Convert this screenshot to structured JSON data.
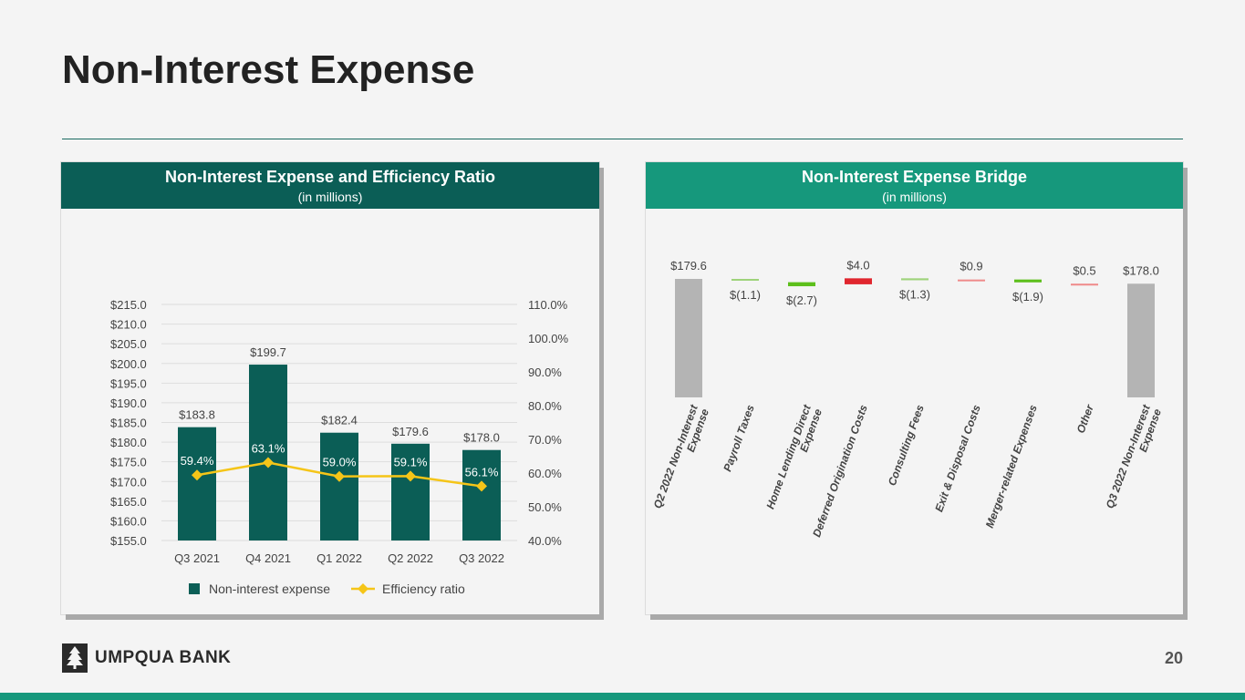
{
  "page": {
    "title": "Non-Interest Expense",
    "page_number": "20",
    "logo_text": "UMPQUA BANK"
  },
  "colors": {
    "dark_teal": "#0b5e56",
    "bright_teal": "#16987c",
    "gold": "#f5c518",
    "green": "#5cbf1b",
    "light_green": "#9ed37a",
    "red": "#e0262e",
    "light_red": "#ef8a8a",
    "gray": "#b4b4b4"
  },
  "left_panel": {
    "title": "Non-Interest Expense and Efficiency Ratio",
    "subtitle": "(in millions)"
  },
  "right_panel": {
    "title": "Non-Interest Expense Bridge",
    "subtitle": "(in millions)"
  },
  "chart_data": [
    {
      "type": "bar",
      "categories": [
        "Q3 2021",
        "Q4 2021",
        "Q1 2022",
        "Q2 2022",
        "Q3 2022"
      ],
      "series": [
        {
          "name": "Non-interest expense",
          "values": [
            183.8,
            199.7,
            182.4,
            179.6,
            178.0
          ],
          "labels": [
            "$183.8",
            "$199.7",
            "$182.4",
            "$179.6",
            "$178.0"
          ],
          "axis": "left"
        },
        {
          "name": "Efficiency ratio",
          "type": "line",
          "values": [
            59.4,
            63.1,
            59.0,
            59.1,
            56.1
          ],
          "labels": [
            "59.4%",
            "63.1%",
            "59.0%",
            "59.1%",
            "56.1%"
          ],
          "axis": "right"
        }
      ],
      "ylim": [
        155,
        215
      ],
      "yticks": [
        "$155.0",
        "$160.0",
        "$165.0",
        "$170.0",
        "$175.0",
        "$180.0",
        "$185.0",
        "$190.0",
        "$195.0",
        "$200.0",
        "$205.0",
        "$210.0",
        "$215.0"
      ],
      "y2lim": [
        40,
        110
      ],
      "y2ticks": [
        "40.0%",
        "50.0%",
        "60.0%",
        "70.0%",
        "80.0%",
        "90.0%",
        "100.0%",
        "110.0%"
      ],
      "legend": [
        "Non-interest expense",
        "Efficiency ratio"
      ],
      "legend_position": "bottom"
    },
    {
      "type": "waterfall",
      "categories": [
        "Q2 2022 Non-Interest Expense",
        "Payroll Taxes",
        "Home Lending Direct Expense",
        "Deferred Origination Costs",
        "Consulting Fees",
        "Exit & Disposal Costs",
        "Merger-related Expenses",
        "Other",
        "Q3 2022 Non-Interest Expense"
      ],
      "values": [
        179.6,
        -1.1,
        -2.7,
        4.0,
        -1.3,
        0.9,
        -1.9,
        0.5,
        178.0
      ],
      "labels": [
        "$179.6",
        "$(1.1)",
        "$(2.7)",
        "$4.0",
        "$(1.3)",
        "$0.9",
        "$(1.9)",
        "$0.5",
        "$178.0"
      ],
      "kinds": [
        "total",
        "delta",
        "delta",
        "delta",
        "delta",
        "delta",
        "delta",
        "delta",
        "total"
      ]
    }
  ]
}
